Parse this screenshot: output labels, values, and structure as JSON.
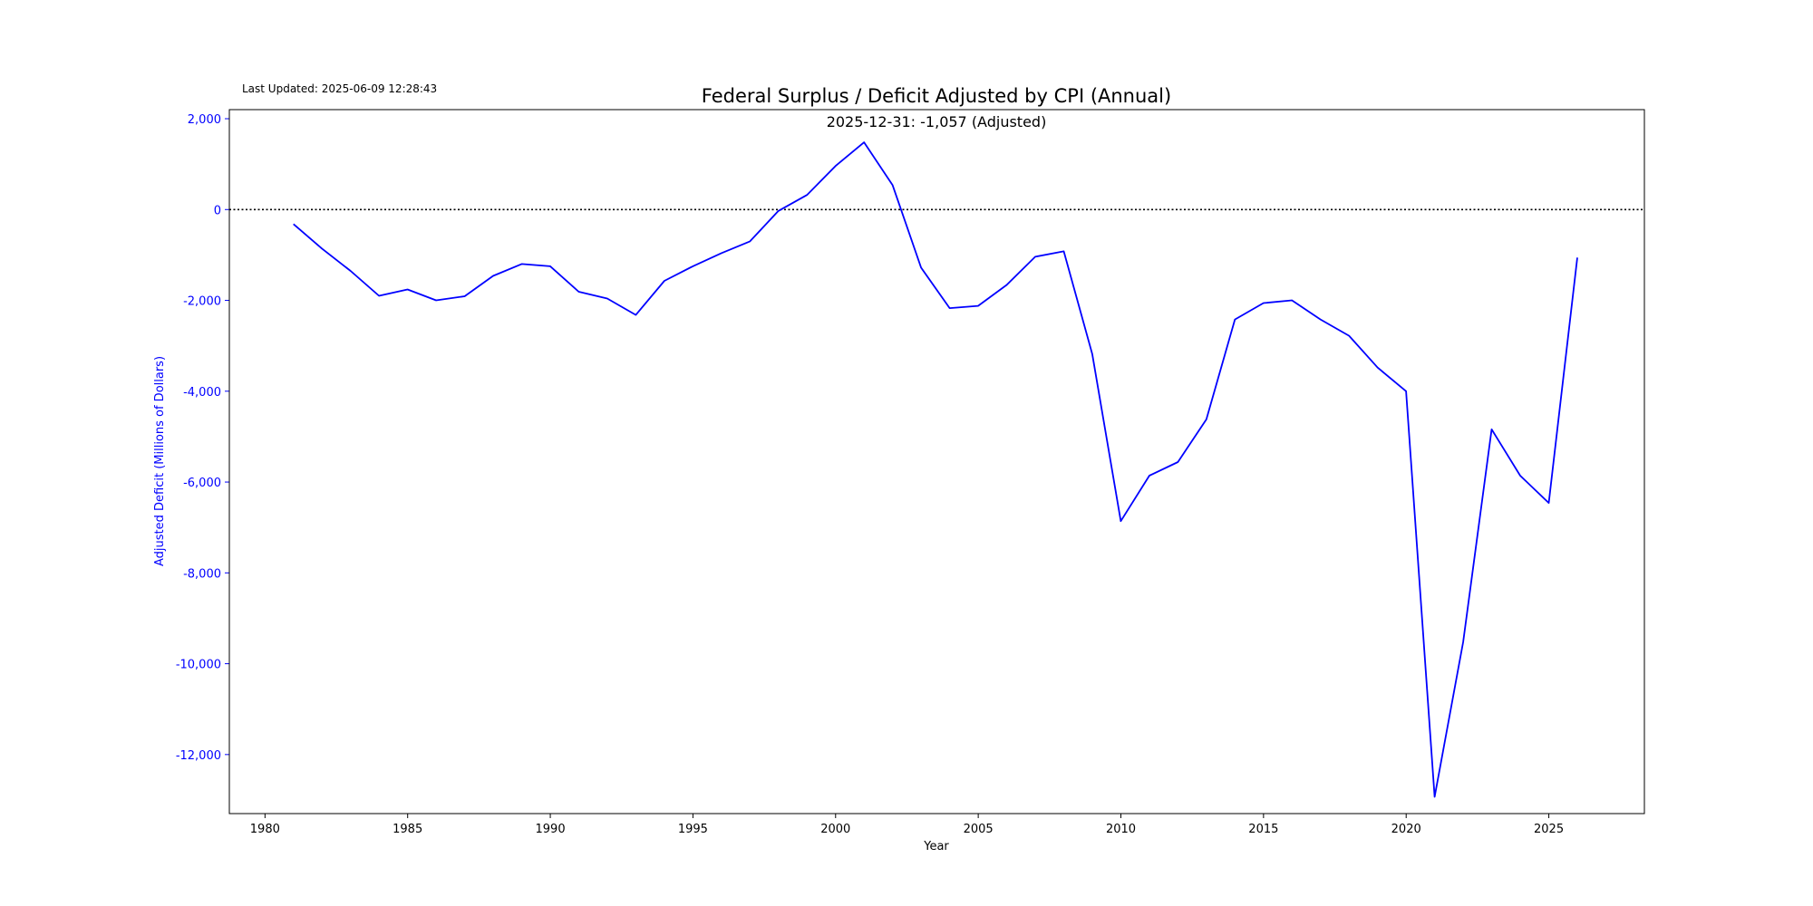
{
  "last_updated": "Last Updated: 2025-06-09 12:28:43",
  "chart_data": {
    "type": "line",
    "title": "Federal Surplus / Deficit Adjusted by CPI (Annual)",
    "subtitle": "2025-12-31: -1,057 (Adjusted)",
    "xlabel": "Year",
    "ylabel": "Adjusted Deficit (Millions of Dollars)",
    "xlim": [
      1978.75,
      2028.35
    ],
    "ylim": [
      -13300,
      2200
    ],
    "xticks": [
      1980,
      1985,
      1990,
      1995,
      2000,
      2005,
      2010,
      2015,
      2020,
      2025
    ],
    "xtick_labels": [
      "1980",
      "1985",
      "1990",
      "1995",
      "2000",
      "2005",
      "2010",
      "2015",
      "2020",
      "2025"
    ],
    "yticks": [
      2000,
      0,
      -2000,
      -4000,
      -6000,
      -8000,
      -10000,
      -12000
    ],
    "ytick_labels": [
      "2,000",
      "0",
      "-2,000",
      "-4,000",
      "-6,000",
      "-8,000",
      "-10,000",
      "-12,000"
    ],
    "reference_line": {
      "y": 0,
      "style": "dotted",
      "color": "#000000"
    },
    "grid": false,
    "series": [
      {
        "color": "#0000ff",
        "points": [
          {
            "x": "1980-12-31",
            "y": -320
          },
          {
            "x": "1981-12-31",
            "y": -860
          },
          {
            "x": "1982-12-31",
            "y": -1350
          },
          {
            "x": "1983-12-31",
            "y": -1900
          },
          {
            "x": "1984-12-31",
            "y": -1760
          },
          {
            "x": "1985-12-31",
            "y": -2000
          },
          {
            "x": "1986-12-31",
            "y": -1910
          },
          {
            "x": "1987-12-31",
            "y": -1460
          },
          {
            "x": "1988-12-31",
            "y": -1200
          },
          {
            "x": "1989-12-31",
            "y": -1250
          },
          {
            "x": "1990-12-31",
            "y": -1810
          },
          {
            "x": "1991-12-31",
            "y": -1960
          },
          {
            "x": "1992-12-31",
            "y": -2320
          },
          {
            "x": "1993-12-31",
            "y": -1570
          },
          {
            "x": "1994-12-31",
            "y": -1250
          },
          {
            "x": "1995-12-31",
            "y": -960
          },
          {
            "x": "1996-12-31",
            "y": -700
          },
          {
            "x": "1997-12-31",
            "y": -30
          },
          {
            "x": "1998-12-31",
            "y": 320
          },
          {
            "x": "1999-12-31",
            "y": 960
          },
          {
            "x": "2000-12-31",
            "y": 1480
          },
          {
            "x": "2001-12-31",
            "y": 540
          },
          {
            "x": "2002-12-31",
            "y": -1280
          },
          {
            "x": "2003-12-31",
            "y": -2170
          },
          {
            "x": "2004-12-31",
            "y": -2120
          },
          {
            "x": "2005-12-31",
            "y": -1660
          },
          {
            "x": "2006-12-31",
            "y": -1040
          },
          {
            "x": "2007-12-31",
            "y": -920
          },
          {
            "x": "2008-12-31",
            "y": -3180
          },
          {
            "x": "2009-12-31",
            "y": -6860
          },
          {
            "x": "2010-12-31",
            "y": -5860
          },
          {
            "x": "2011-12-31",
            "y": -5560
          },
          {
            "x": "2012-12-31",
            "y": -4620
          },
          {
            "x": "2013-12-31",
            "y": -2420
          },
          {
            "x": "2014-12-31",
            "y": -2060
          },
          {
            "x": "2015-12-31",
            "y": -2000
          },
          {
            "x": "2016-12-31",
            "y": -2420
          },
          {
            "x": "2017-12-31",
            "y": -2780
          },
          {
            "x": "2018-12-31",
            "y": -3480
          },
          {
            "x": "2019-12-31",
            "y": -4000
          },
          {
            "x": "2020-12-31",
            "y": -12930
          },
          {
            "x": "2021-12-31",
            "y": -9520
          },
          {
            "x": "2022-12-31",
            "y": -4840
          },
          {
            "x": "2023-12-31",
            "y": -5860
          },
          {
            "x": "2024-12-31",
            "y": -6460
          },
          {
            "x": "2025-12-31",
            "y": -1057
          }
        ]
      }
    ]
  }
}
